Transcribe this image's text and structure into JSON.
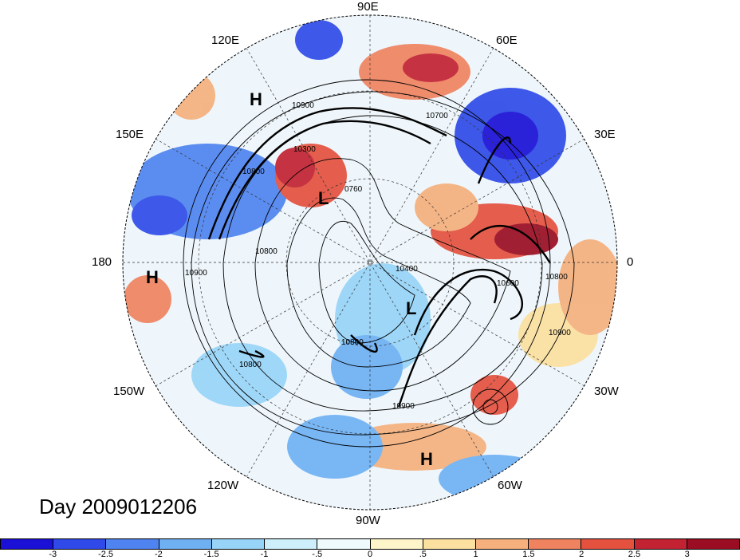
{
  "title": "Day 2009012206",
  "longitude_labels": [
    {
      "name": "90E"
    },
    {
      "name": "60E"
    },
    {
      "name": "30E"
    },
    {
      "name": "0"
    },
    {
      "name": "30W"
    },
    {
      "name": "60W"
    },
    {
      "name": "90W"
    },
    {
      "name": "120W"
    },
    {
      "name": "150W"
    },
    {
      "name": "180"
    },
    {
      "name": "150E"
    },
    {
      "name": "120E"
    }
  ],
  "pressure_labels": [
    "H",
    "H",
    "L",
    "L",
    "H"
  ],
  "contour_labels": [
    "10700",
    "10900",
    "10300",
    "10800",
    "0760",
    "10900",
    "10800",
    "10600",
    "10900",
    "10800",
    "10800",
    "10900",
    "10800",
    "10400"
  ],
  "colorbar": {
    "colors": [
      "#1a10d6",
      "#2f4ae8",
      "#4f84f0",
      "#6fb0f3",
      "#98d4f7",
      "#cdeffb",
      "#eefafc",
      "#fdf5c9",
      "#fbe0a0",
      "#f5b07d",
      "#ef8360",
      "#e4513f",
      "#c22232",
      "#9b0d22"
    ],
    "ticks": [
      "-3",
      "-2.5",
      "-2",
      "-1.5",
      "-1",
      "-.5",
      "0",
      ".5",
      "1",
      "1.5",
      "2",
      "2.5",
      "3"
    ]
  }
}
